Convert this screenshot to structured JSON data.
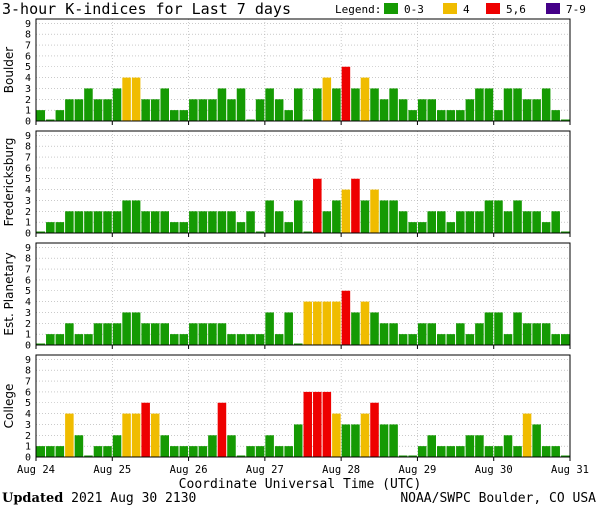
{
  "title": "3-hour K-indices for Last 7 days",
  "legend": {
    "label": "Legend:",
    "items": [
      {
        "label": "0-3",
        "color": "#159a03"
      },
      {
        "label": "4",
        "color": "#f0bc00"
      },
      {
        "label": "5,6",
        "color": "#ee0000"
      },
      {
        "label": "7-9",
        "color": "#440088"
      }
    ]
  },
  "xlabel": "Coordinate Universal Time (UTC)",
  "footer": {
    "updated_label": "Updated",
    "updated_value": "2021 Aug 30 2130",
    "credit": "NOAA/SWPC Boulder, CO USA"
  },
  "chart_data": {
    "type": "bar",
    "ylim": [
      0,
      9
    ],
    "yticks": [
      "0",
      "1",
      "2",
      "3",
      "4",
      "5",
      "6",
      "7",
      "8",
      "9"
    ],
    "x_tick_labels": [
      "Aug 24",
      "Aug 25",
      "Aug 26",
      "Aug 27",
      "Aug 28",
      "Aug 29",
      "Aug 30",
      "Aug 31"
    ],
    "bars_per_day": 8,
    "grid": true,
    "panels": [
      {
        "name": "Boulder",
        "values": [
          1,
          0,
          1,
          2,
          2,
          3,
          2,
          2,
          3,
          4,
          4,
          2,
          2,
          3,
          1,
          1,
          2,
          2,
          2,
          3,
          2,
          3,
          0,
          2,
          3,
          2,
          1,
          3,
          0,
          3,
          4,
          3,
          5,
          3,
          4,
          3,
          2,
          3,
          2,
          1,
          2,
          2,
          1,
          1,
          1,
          2,
          3,
          3,
          1,
          3,
          3,
          2,
          2,
          3,
          1,
          0
        ]
      },
      {
        "name": "Fredericksburg",
        "values": [
          0,
          1,
          1,
          2,
          2,
          2,
          2,
          2,
          2,
          3,
          3,
          2,
          2,
          2,
          1,
          1,
          2,
          2,
          2,
          2,
          2,
          1,
          2,
          0,
          3,
          2,
          1,
          3,
          0,
          5,
          2,
          3,
          4,
          5,
          3,
          4,
          3,
          3,
          2,
          1,
          1,
          2,
          2,
          1,
          2,
          2,
          2,
          3,
          3,
          2,
          3,
          2,
          2,
          1,
          2,
          0
        ]
      },
      {
        "name": "Est. Planetary",
        "values": [
          0,
          1,
          1,
          2,
          1,
          1,
          2,
          2,
          2,
          3,
          3,
          2,
          2,
          2,
          1,
          1,
          2,
          2,
          2,
          2,
          1,
          1,
          1,
          1,
          3,
          1,
          3,
          0,
          4,
          4,
          4,
          4,
          5,
          3,
          4,
          3,
          2,
          2,
          1,
          1,
          2,
          2,
          1,
          1,
          2,
          1,
          2,
          3,
          3,
          1,
          3,
          2,
          2,
          2,
          1,
          1
        ]
      },
      {
        "name": "College",
        "values": [
          1,
          1,
          1,
          4,
          2,
          0,
          1,
          1,
          2,
          4,
          4,
          5,
          4,
          2,
          1,
          1,
          1,
          1,
          2,
          5,
          2,
          0,
          1,
          1,
          2,
          1,
          1,
          3,
          6,
          6,
          6,
          4,
          3,
          3,
          4,
          5,
          3,
          3,
          0,
          0,
          1,
          2,
          1,
          1,
          1,
          2,
          2,
          1,
          1,
          2,
          1,
          4,
          3,
          1,
          1,
          0
        ]
      }
    ]
  }
}
